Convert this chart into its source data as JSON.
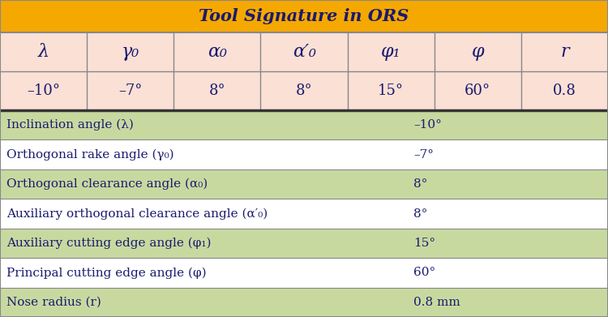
{
  "title": "Tool Signature in ORS",
  "title_bg": "#F5A800",
  "title_color": "#1a1a6e",
  "title_fontsize": 15,
  "header_labels": [
    "λ",
    "γ₀",
    "α₀",
    "α′₀",
    "φ₁",
    "φ",
    "r"
  ],
  "value_labels": [
    "–10°",
    "–7°",
    "8°",
    "8°",
    "15°",
    "60°",
    "0.8"
  ],
  "header_bg": "#FAE0D5",
  "value_bg": "#FAE0D5",
  "header_text_color": "#1a1a6e",
  "value_text_color": "#1a1a6e",
  "detail_rows": [
    [
      "Inclination angle (λ)",
      "–10°"
    ],
    [
      "Orthogonal rake angle (γ₀)",
      "–7°"
    ],
    [
      "Orthogonal clearance angle (α₀)",
      "8°"
    ],
    [
      "Auxiliary orthogonal clearance angle (α′₀)",
      "8°"
    ],
    [
      "Auxiliary cutting edge angle (φ₁)",
      "15°"
    ],
    [
      "Principal cutting edge angle (φ)",
      "60°"
    ],
    [
      "Nose radius (r)",
      "0.8 mm"
    ]
  ],
  "detail_row_bgs": [
    "#C8D9A0",
    "#FFFFFF",
    "#C8D9A0",
    "#FFFFFF",
    "#C8D9A0",
    "#FFFFFF",
    "#C8D9A0"
  ],
  "detail_text_color": "#1a1a6e",
  "detail_fontsize": 11,
  "border_color": "#888888",
  "line_color": "#888888",
  "fig_w": 7.5,
  "fig_h": 3.91,
  "dpi": 100
}
